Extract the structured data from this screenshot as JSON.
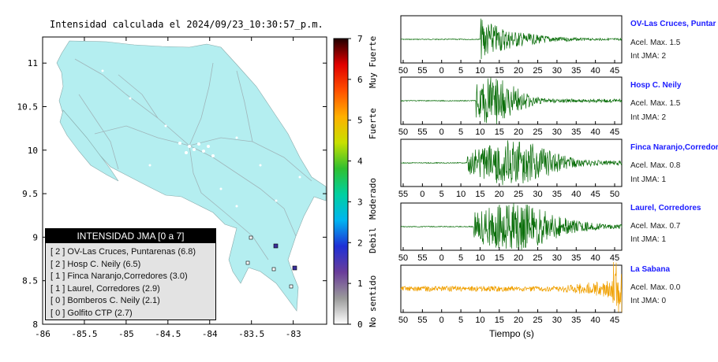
{
  "title": "Intensidad calculada el 2024/09/23_10:30:57_p.m.",
  "colorbar": {
    "ticks": [
      "0",
      "1",
      "2",
      "3",
      "4",
      "5",
      "6",
      "7"
    ],
    "labels": [
      "No sentido",
      "Debil",
      "Moderado",
      "Fuerte",
      "Muy Fuerte"
    ],
    "colors": [
      "#ffffff",
      "#9a9a9a",
      "#6a3d9a",
      "#1f2fd6",
      "#00b5f0",
      "#00d0a0",
      "#30c030",
      "#c8e000",
      "#ffb000",
      "#ff5000",
      "#e00000",
      "#200000"
    ]
  },
  "map": {
    "x_ticks": [
      "-86",
      "-85.5",
      "-85",
      "-84.5",
      "-84",
      "-83.5",
      "-83"
    ],
    "y_ticks": [
      "8",
      "8.5",
      "9",
      "9.5",
      "10",
      "10.5",
      "11"
    ],
    "xlim": [
      -86,
      -82.6
    ],
    "ylim": [
      8,
      11.3
    ],
    "land_color": "#b4eef0",
    "sea_color": "#ffffff"
  },
  "legend": {
    "header": "INTENSIDAD JMA [0 a 7]",
    "items": [
      "[ 2 ]  OV-Las Cruces, Puntarenas (6.8)",
      "[ 2 ]  Hosp C. Neily (6.5)",
      "[ 1 ]  Finca Naranjo,Corredores (3.0)",
      "[ 1 ]  Laurel, Corredores (2.9)",
      "[ 0 ]  Bomberos C. Neily (2.1)",
      "[ 0 ]  Golfito CTP (2.7)"
    ]
  },
  "stations": [
    {
      "name": "OV-Las Cruces, Puntar",
      "acel": "Acel. Max. 1.5",
      "jma": "Int JMA: 2",
      "color": "#0a6e0a",
      "ticks": [
        "50",
        "55",
        "0",
        "5",
        "10",
        "15",
        "20",
        "25",
        "30",
        "35",
        "40",
        "45"
      ]
    },
    {
      "name": "Hosp C. Neily",
      "acel": "Acel. Max. 1.5",
      "jma": "Int JMA: 2",
      "color": "#0a6e0a",
      "ticks": [
        "50",
        "55",
        "0",
        "5",
        "10",
        "15",
        "20",
        "25",
        "30",
        "35",
        "40",
        "45"
      ]
    },
    {
      "name": "Finca Naranjo,Corredor",
      "acel": "Acel. Max. 0.8",
      "jma": "Int JMA: 1",
      "color": "#0a6e0a",
      "ticks": [
        "55",
        "0",
        "5",
        "10",
        "15",
        "20",
        "25",
        "30",
        "35",
        "40",
        "45",
        "50"
      ]
    },
    {
      "name": "Laurel, Corredores",
      "acel": "Acel. Max. 0.7",
      "jma": "Int JMA: 1",
      "color": "#0a6e0a",
      "ticks": [
        "50",
        "55",
        "0",
        "5",
        "10",
        "15",
        "20",
        "25",
        "30",
        "35",
        "40",
        "45"
      ]
    },
    {
      "name": "La Sabana",
      "acel": "Acel. Max. 0.0",
      "jma": "Int JMA: 0",
      "color": "#f0a000",
      "ticks": [
        "50",
        "55",
        "0",
        "5",
        "10",
        "15",
        "20",
        "25",
        "30",
        "35",
        "40",
        "45"
      ]
    }
  ],
  "xlabel": "Tiempo (s)",
  "chart_data": [
    {
      "type": "heatmap",
      "title": "Intensidad calculada el 2024/09/23_10:30:57_p.m.",
      "x_ticks": [
        -86,
        -85.5,
        -85,
        -84.5,
        -84,
        -83.5,
        -83
      ],
      "y_ticks": [
        8,
        8.5,
        9,
        9.5,
        10,
        10.5,
        11
      ],
      "colorbar_range": [
        0,
        7
      ],
      "marked_stations": [
        {
          "lon": -82.85,
          "lat": 8.65,
          "intensity": 2
        },
        {
          "lon": -83.1,
          "lat": 8.9,
          "intensity": 2
        }
      ]
    },
    {
      "type": "line",
      "xlabel": "Tiempo (s)",
      "series": [
        {
          "name": "OV-Las Cruces, Puntar",
          "onset_label": "10",
          "peak_tick": "10"
        },
        {
          "name": "Hosp C. Neily",
          "onset_label": "10",
          "peak_tick": "15"
        },
        {
          "name": "Finca Naranjo,Corredor",
          "onset_label": "10",
          "peak_tick": "20"
        },
        {
          "name": "Laurel, Corredores",
          "onset_label": "10",
          "peak_tick": "20"
        },
        {
          "name": "La Sabana",
          "onset_label": "30",
          "peak_tick": "45"
        }
      ]
    }
  ]
}
